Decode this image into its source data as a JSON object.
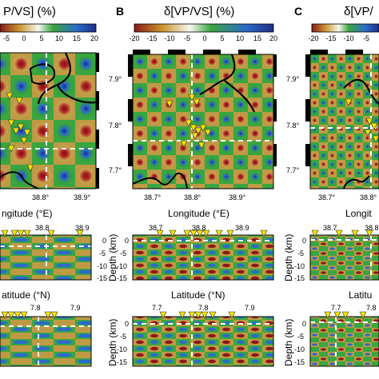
{
  "panels": [
    {
      "letter": "",
      "cb_title": "P/VS] (%)",
      "cb_ticks": [
        "-5",
        "0",
        "5",
        "10",
        "15",
        "20"
      ]
    },
    {
      "letter": "B",
      "cb_title": "δ[VP/VS] (%)",
      "cb_ticks": [
        "-20",
        "-15",
        "-10",
        "-5",
        "0",
        "5",
        "10",
        "15",
        "20"
      ]
    },
    {
      "letter": "C",
      "cb_title": "δ[VP/",
      "cb_ticks": [
        "-20",
        "-15",
        "-10",
        "-5"
      ]
    }
  ],
  "map": {
    "lat_ticks": [
      "7.9°",
      "7.8°",
      "7.7°"
    ],
    "lon_ticks_a": [
      "38.8°",
      "38.9°"
    ],
    "lon_ticks_b": [
      "38.7°",
      "38.8°",
      "38.9°"
    ],
    "lon_ticks_c": [
      "38.7°",
      "38.8°"
    ],
    "xlabel_a": "ngitude (°E)",
    "xlabel_b": "Longitude (°E)",
    "xlabel_c": "Longit"
  },
  "lon_section": {
    "top_ticks_a": [
      "38.8",
      "38.9"
    ],
    "top_ticks_b": [
      "38.7",
      "38.8",
      "38.9"
    ],
    "top_ticks_c": [
      "38.7",
      "38.8"
    ],
    "depth_ticks": [
      "0",
      "-5",
      "-10",
      "-15"
    ],
    "ylabel": "Depth (km)",
    "xlabel_a": "atitude (°N)",
    "xlabel_b": "Latitude (°N)",
    "xlabel_c": "Latitu"
  },
  "lat_section": {
    "top_ticks_a": [
      "7.8",
      "7.9"
    ],
    "top_ticks_b": [
      "7.7",
      "7.8",
      "7.9"
    ],
    "top_ticks_c": [
      "7.7",
      "7.8"
    ],
    "depth_ticks": [
      "0",
      "-5",
      "-10",
      "-15"
    ],
    "ylabel": "Depth (km)"
  },
  "colors": {
    "low": "#b3262a",
    "mid": "#2e9e3a",
    "high": "#2c4fb8",
    "neutral": "#f5f5e8",
    "station": "#f2e200"
  }
}
